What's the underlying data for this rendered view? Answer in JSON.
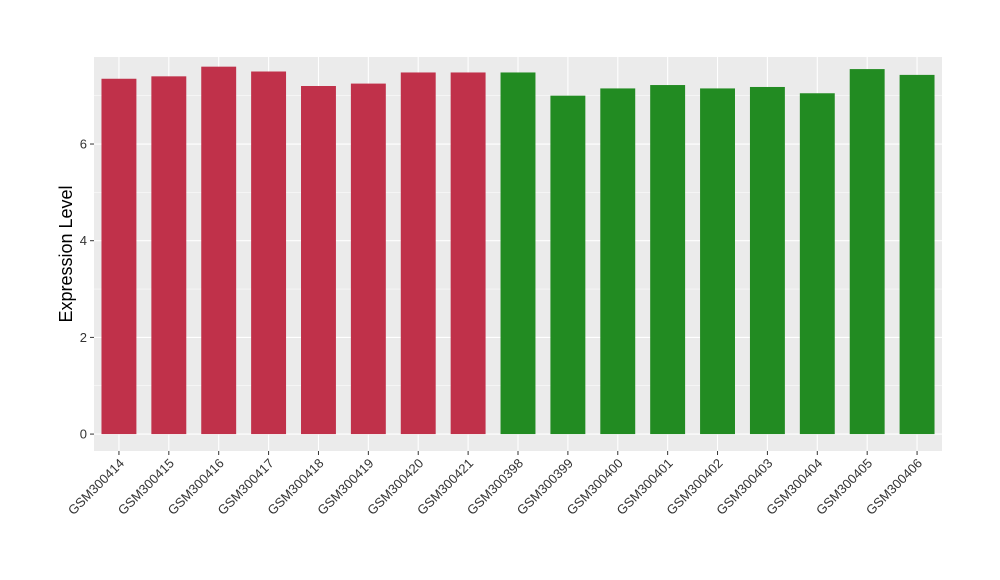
{
  "chart_data": {
    "type": "bar",
    "title": "",
    "xlabel": "",
    "ylabel": "Expression Level",
    "ylim": [
      -0.35,
      7.8
    ],
    "yticks": [
      0,
      2,
      4,
      6
    ],
    "grid": true,
    "legend": "none",
    "categories": [
      "GSM300414",
      "GSM300415",
      "GSM300416",
      "GSM300417",
      "GSM300418",
      "GSM300419",
      "GSM300420",
      "GSM300421",
      "GSM300398",
      "GSM300399",
      "GSM300400",
      "GSM300401",
      "GSM300402",
      "GSM300403",
      "GSM300404",
      "GSM300405",
      "GSM300406"
    ],
    "values": [
      7.35,
      7.4,
      7.6,
      7.5,
      7.2,
      7.25,
      7.48,
      7.48,
      7.48,
      7.0,
      7.15,
      7.22,
      7.15,
      7.18,
      7.05,
      7.55,
      7.43
    ],
    "groups": [
      "red",
      "red",
      "red",
      "red",
      "red",
      "red",
      "red",
      "red",
      "green",
      "green",
      "green",
      "green",
      "green",
      "green",
      "green",
      "green",
      "green"
    ],
    "colors": {
      "red": "#c0314a",
      "green": "#228b22",
      "panel": "#ebebeb",
      "gridline": "#ffffff"
    }
  }
}
